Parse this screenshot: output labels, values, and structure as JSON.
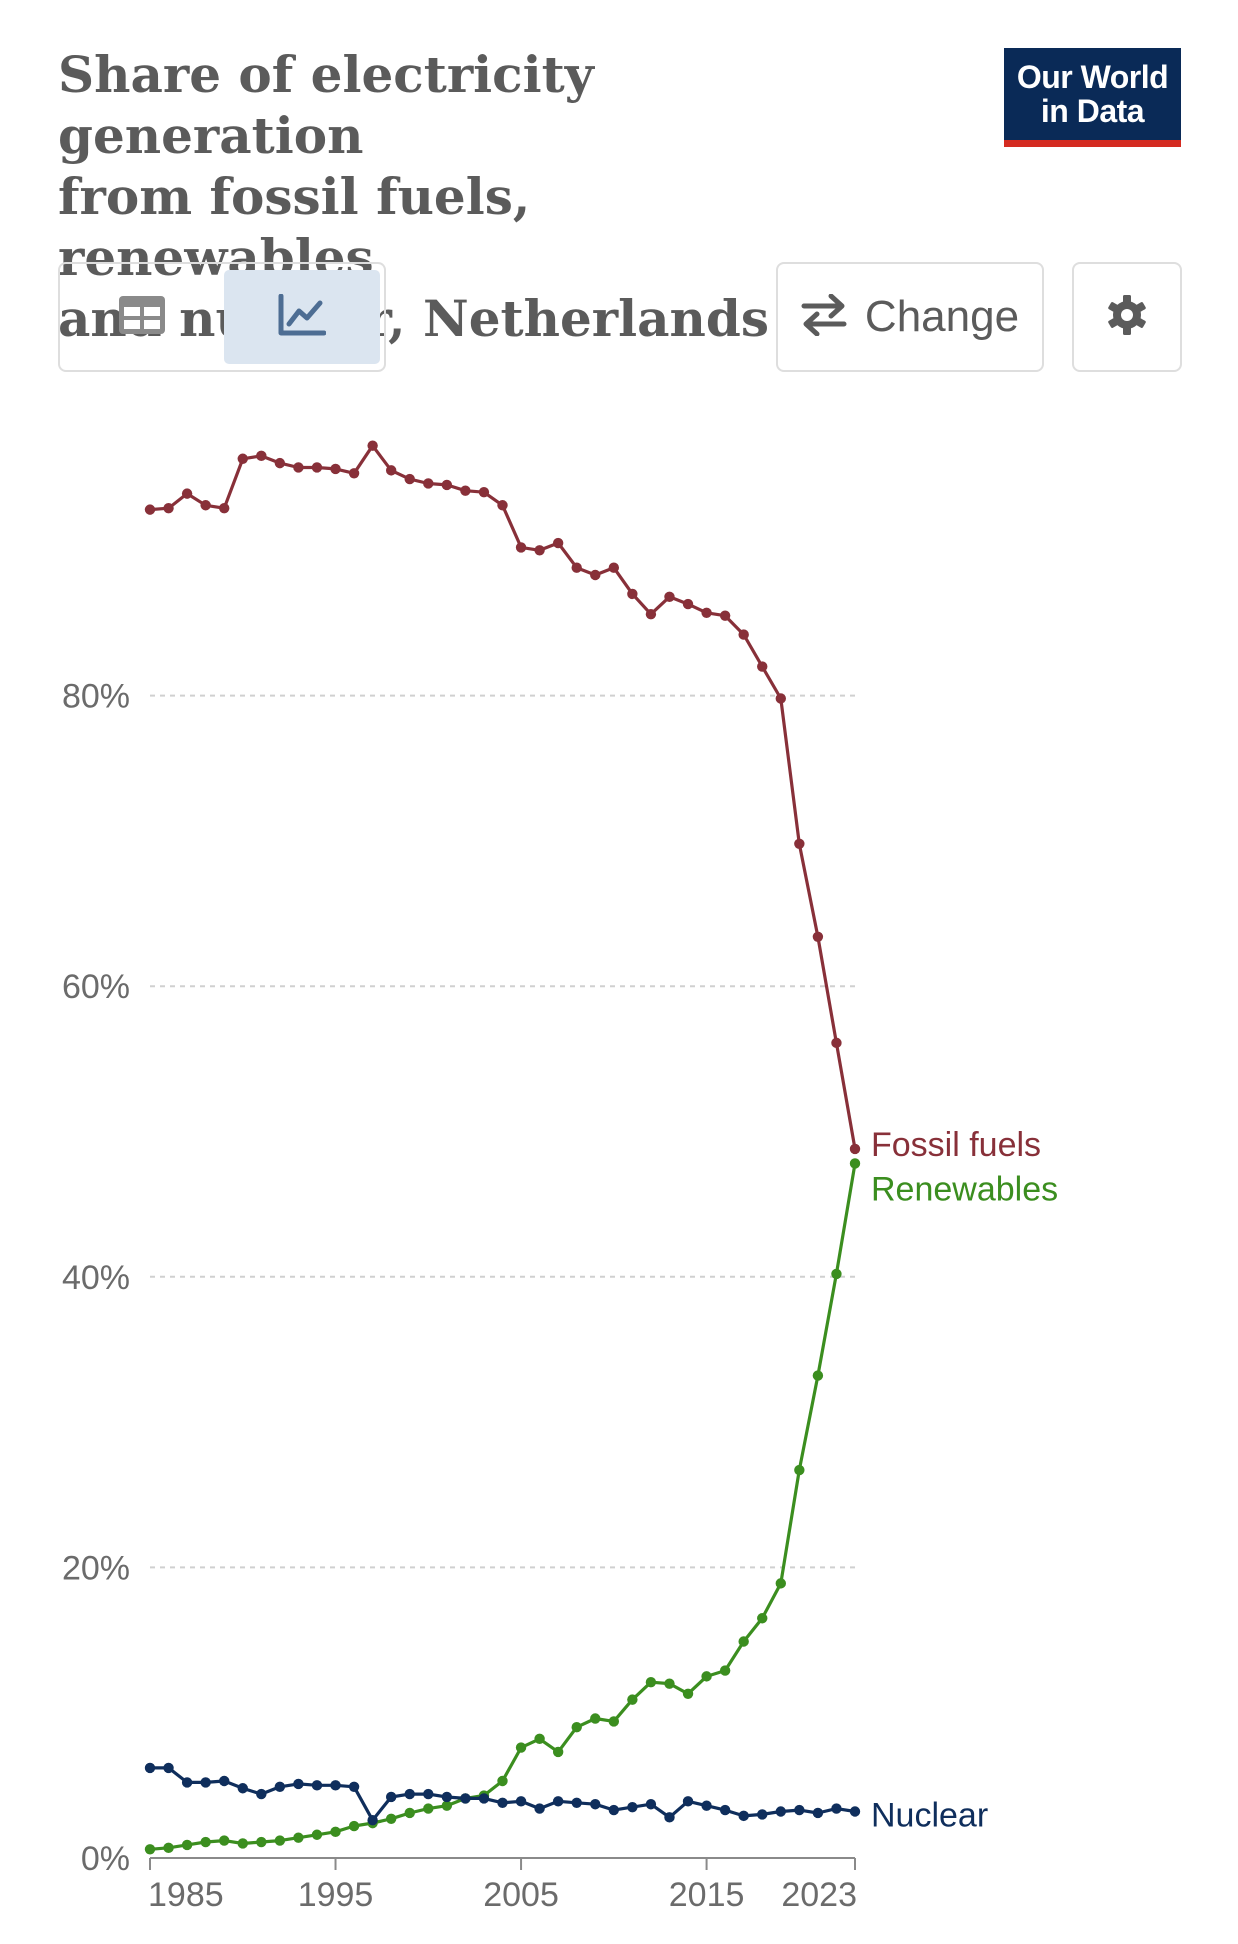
{
  "header": {
    "title_lines": [
      "Share of electricity generation",
      "from fossil fuels, renewables",
      "and nuclear, Netherlands"
    ],
    "logo_lines": [
      "Our World",
      "in Data"
    ]
  },
  "controls": {
    "table_view_icon": "table-icon",
    "chart_view_icon": "line-chart-icon",
    "change_icon": "swap-arrows-icon",
    "change_label": "Change",
    "settings_icon": "gear-icon"
  },
  "colors": {
    "fossil": "#883039",
    "renewables": "#3b8e1f",
    "nuclear": "#0f2e5c",
    "logo_bg": "#0a2a57",
    "logo_accent": "#d42b21"
  },
  "chart_data": {
    "type": "line",
    "title": "Share of electricity generation from fossil fuels, renewables and nuclear, Netherlands",
    "ylim": [
      0,
      100
    ],
    "y_ticks": [
      0,
      20,
      40,
      60,
      80
    ],
    "y_tick_labels": [
      "0%",
      "20%",
      "40%",
      "60%",
      "80%"
    ],
    "y_grid": true,
    "x_tick_values": [
      1985,
      1995,
      2005,
      2015,
      2023
    ],
    "x_tick_labels": [
      "1985",
      "1995",
      "2005",
      "2015",
      "2023"
    ],
    "x": [
      1985,
      1986,
      1987,
      1988,
      1989,
      1990,
      1991,
      1992,
      1993,
      1994,
      1995,
      1996,
      1997,
      1998,
      1999,
      2000,
      2001,
      2002,
      2003,
      2004,
      2005,
      2006,
      2007,
      2008,
      2009,
      2010,
      2011,
      2012,
      2013,
      2014,
      2015,
      2016,
      2017,
      2018,
      2019,
      2020,
      2021,
      2022,
      2023
    ],
    "series": [
      {
        "name": "Fossil fuels",
        "color_key": "fossil",
        "values": [
          92.8,
          92.9,
          93.9,
          93.1,
          92.9,
          96.3,
          96.5,
          96.0,
          95.7,
          95.7,
          95.6,
          95.3,
          97.2,
          95.5,
          94.9,
          94.6,
          94.5,
          94.1,
          94.0,
          93.1,
          90.2,
          90.0,
          90.5,
          88.8,
          88.3,
          88.8,
          87.0,
          85.6,
          86.8,
          86.3,
          85.7,
          85.5,
          84.2,
          82.0,
          79.8,
          69.8,
          63.4,
          56.1,
          48.8
        ]
      },
      {
        "name": "Renewables",
        "color_key": "renewables",
        "values": [
          0.6,
          0.7,
          0.9,
          1.1,
          1.2,
          1.0,
          1.1,
          1.2,
          1.4,
          1.6,
          1.8,
          2.2,
          2.4,
          2.7,
          3.1,
          3.4,
          3.6,
          4.1,
          4.3,
          5.3,
          7.6,
          8.2,
          7.3,
          9.0,
          9.6,
          9.4,
          10.9,
          12.1,
          12.0,
          11.3,
          12.5,
          12.9,
          14.9,
          16.5,
          18.9,
          26.7,
          33.2,
          40.2,
          47.8
        ]
      },
      {
        "name": "Nuclear",
        "color_key": "nuclear",
        "values": [
          6.2,
          6.2,
          5.2,
          5.2,
          5.3,
          4.8,
          4.4,
          4.9,
          5.1,
          5.0,
          5.0,
          4.9,
          2.6,
          4.2,
          4.4,
          4.4,
          4.2,
          4.1,
          4.1,
          3.8,
          3.9,
          3.4,
          3.9,
          3.8,
          3.7,
          3.3,
          3.5,
          3.7,
          2.8,
          3.9,
          3.6,
          3.3,
          2.9,
          3.0,
          3.2,
          3.3,
          3.1,
          3.4,
          3.2
        ]
      }
    ]
  }
}
